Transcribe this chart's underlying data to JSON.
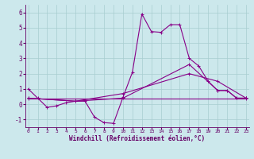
{
  "background_color": "#cce8ec",
  "grid_color": "#a8cdd0",
  "line_color": "#880088",
  "xlim": [
    -0.3,
    23.3
  ],
  "ylim": [
    -1.5,
    6.5
  ],
  "xticks": [
    0,
    1,
    2,
    3,
    4,
    5,
    6,
    7,
    8,
    9,
    10,
    11,
    12,
    13,
    14,
    15,
    16,
    17,
    18,
    19,
    20,
    21,
    22,
    23
  ],
  "yticks": [
    -1,
    0,
    1,
    2,
    3,
    4,
    5,
    6
  ],
  "xlabel": "Windchill (Refroidissement éolien,°C)",
  "series": [
    {
      "x": [
        0,
        1,
        2,
        3,
        4,
        5,
        6,
        7,
        8,
        9,
        10,
        11,
        12,
        13,
        14,
        15,
        16,
        17,
        18,
        19,
        20,
        21,
        22,
        23
      ],
      "y": [
        1.0,
        0.4,
        -0.2,
        -0.1,
        0.1,
        0.2,
        0.2,
        -0.85,
        -1.2,
        -1.25,
        0.45,
        2.1,
        5.9,
        4.75,
        4.7,
        5.2,
        5.2,
        3.0,
        2.5,
        1.5,
        0.9,
        0.9,
        0.4,
        0.4
      ]
    },
    {
      "x": [
        0,
        5,
        10,
        17,
        20,
        21,
        22,
        23
      ],
      "y": [
        0.4,
        0.2,
        0.4,
        2.6,
        0.9,
        0.9,
        0.4,
        0.4
      ]
    },
    {
      "x": [
        0,
        5,
        10,
        17,
        20,
        23
      ],
      "y": [
        0.4,
        0.2,
        0.7,
        2.0,
        1.5,
        0.4
      ]
    },
    {
      "x": [
        0,
        23
      ],
      "y": [
        0.35,
        0.35
      ]
    }
  ]
}
